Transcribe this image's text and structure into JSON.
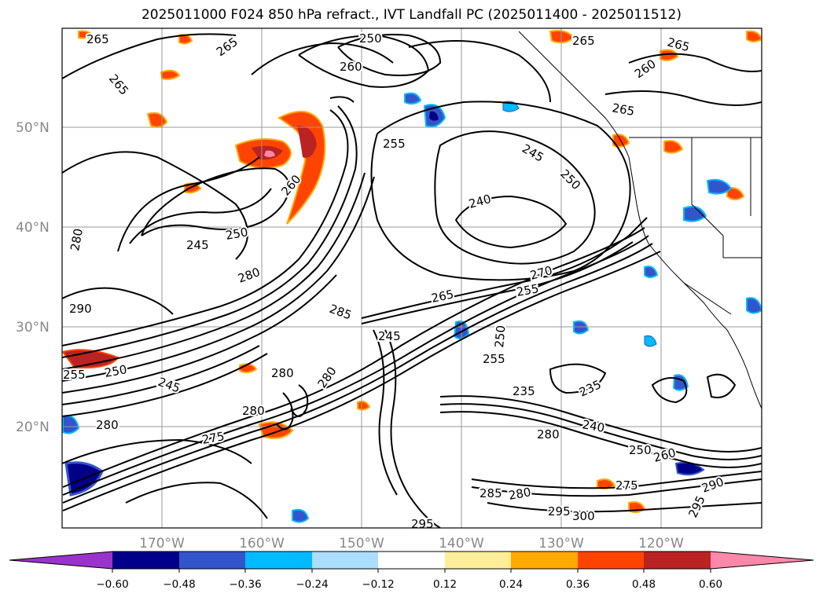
{
  "title": "2025011000 F024 850 hPa refract., IVT Landfall PC (2025011400 - 2025011512)",
  "map": {
    "lat_labels": [
      "50°N",
      "40°N",
      "30°N",
      "20°N"
    ],
    "lon_labels": [
      "170°W",
      "160°W",
      "150°W",
      "140°W",
      "130°W",
      "120°W"
    ]
  },
  "contour_labels": [
    {
      "text": "265"
    },
    {
      "text": "265"
    },
    {
      "text": "250"
    },
    {
      "text": "265"
    },
    {
      "text": "265"
    },
    {
      "text": "265"
    },
    {
      "text": "260"
    },
    {
      "text": "265"
    },
    {
      "text": "260"
    },
    {
      "text": "255"
    },
    {
      "text": "245"
    },
    {
      "text": "250"
    },
    {
      "text": "240"
    },
    {
      "text": "260"
    },
    {
      "text": "245"
    },
    {
      "text": "250"
    },
    {
      "text": "280"
    },
    {
      "text": "280"
    },
    {
      "text": "270"
    },
    {
      "text": "265"
    },
    {
      "text": "255"
    },
    {
      "text": "285"
    },
    {
      "text": "245"
    },
    {
      "text": "250"
    },
    {
      "text": "255"
    },
    {
      "text": "235"
    },
    {
      "text": "235"
    },
    {
      "text": "240"
    },
    {
      "text": "280"
    },
    {
      "text": "250"
    },
    {
      "text": "260"
    },
    {
      "text": "275"
    },
    {
      "text": "285"
    },
    {
      "text": "280"
    },
    {
      "text": "295"
    },
    {
      "text": "300"
    },
    {
      "text": "290"
    },
    {
      "text": "295"
    },
    {
      "text": "280"
    },
    {
      "text": "280"
    },
    {
      "text": "275"
    },
    {
      "text": "250"
    },
    {
      "text": "255"
    },
    {
      "text": "245"
    },
    {
      "text": "280"
    },
    {
      "text": "290"
    },
    {
      "text": "295"
    },
    {
      "text": "280"
    }
  ],
  "colorbar": {
    "colors": [
      "#9933cc",
      "#000088",
      "#3355cc",
      "#00bbff",
      "#aaddff",
      "#ffffff",
      "#ffee99",
      "#ffaa00",
      "#ff4400",
      "#bb2222",
      "#ff88aa"
    ],
    "tick_labels": [
      "−0.60",
      "−0.48",
      "−0.36",
      "−0.24",
      "−0.12",
      "0.12",
      "0.24",
      "0.36",
      "0.48",
      "0.60"
    ]
  }
}
